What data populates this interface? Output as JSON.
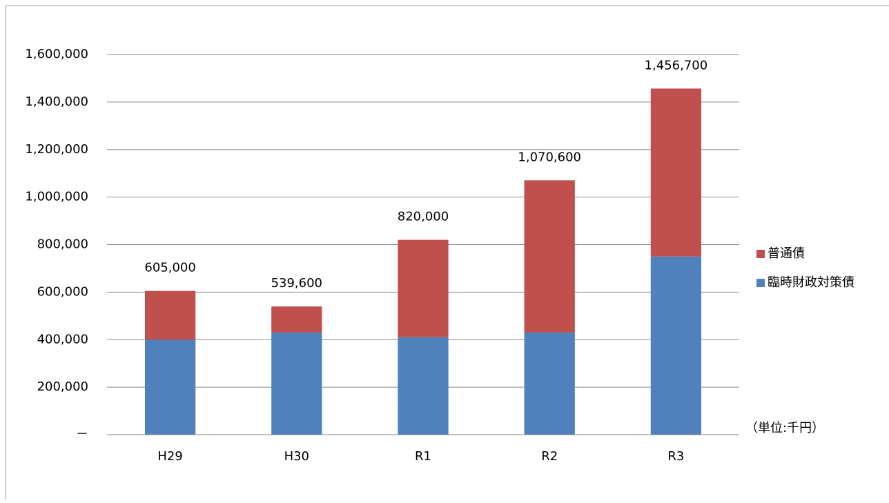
{
  "chart_data": {
    "type": "stacked_bar",
    "categories": [
      "H29",
      "H30",
      "R1",
      "R2",
      "R3"
    ],
    "series": [
      {
        "name": "臨時財政対策債",
        "color": "#4f81bd",
        "values": [
          400000,
          430000,
          410000,
          430000,
          750000
        ]
      },
      {
        "name": "普通債",
        "color": "#c0504d",
        "values": [
          205000,
          109600,
          410000,
          640600,
          706700
        ]
      }
    ],
    "totals": {
      "values": [
        605000,
        539600,
        820000,
        1070600,
        1456700
      ],
      "value_labels": [
        "605,000",
        "539,600",
        "820,000",
        "1,070,600",
        "1,456,700"
      ]
    },
    "ylim": [
      0,
      1600000
    ],
    "yticks": [
      {
        "value": 0,
        "label": "－"
      },
      {
        "value": 200000,
        "label": "200,000"
      },
      {
        "value": 400000,
        "label": "400,000"
      },
      {
        "value": 600000,
        "label": "600,000"
      },
      {
        "value": 800000,
        "label": "800,000"
      },
      {
        "value": 1000000,
        "label": "1,000,000"
      },
      {
        "value": 1200000,
        "label": "1,200,000"
      },
      {
        "value": 1400000,
        "label": "1,400,000"
      },
      {
        "value": 1600000,
        "label": "1,600,000"
      }
    ],
    "grid": true,
    "legend": "right",
    "unit_note": "（単位:千円）"
  }
}
